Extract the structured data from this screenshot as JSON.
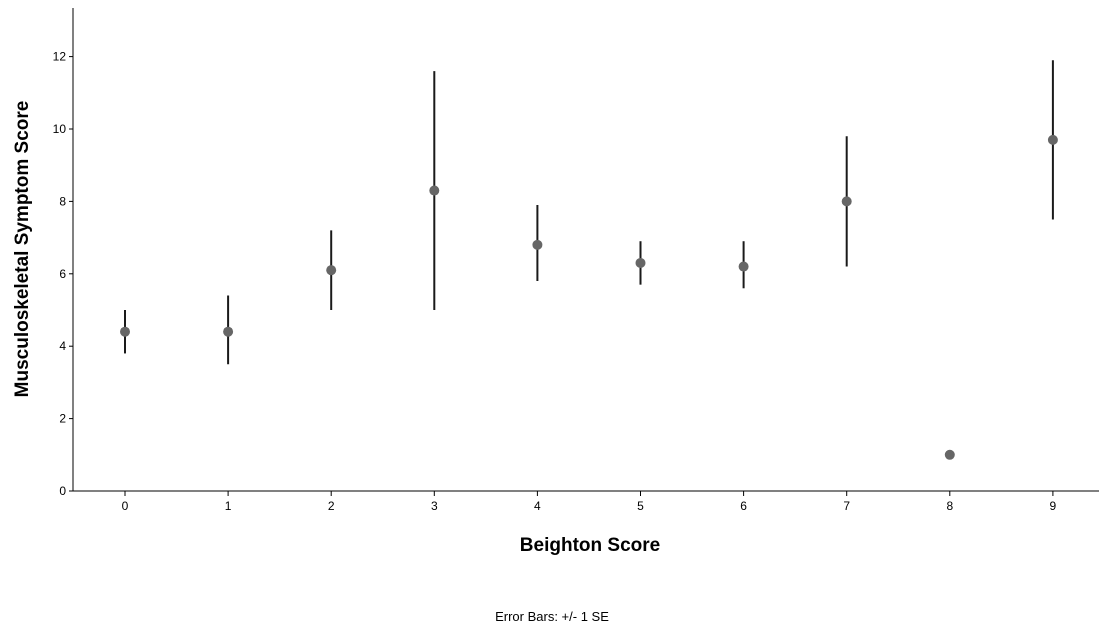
{
  "chart_data": {
    "type": "scatter",
    "title": "",
    "xlabel": "Beighton Score",
    "ylabel": "Musculoskeletal Symptom Score",
    "note": "Error Bars: +/- 1 SE",
    "categories": [
      "0",
      "1",
      "2",
      "3",
      "4",
      "5",
      "6",
      "7",
      "8",
      "9"
    ],
    "series": [
      {
        "values": [
          4.4,
          4.4,
          6.1,
          8.3,
          6.8,
          6.3,
          6.2,
          8.0,
          1.0,
          9.7
        ],
        "error_low": [
          3.8,
          3.5,
          5.0,
          5.0,
          5.8,
          5.7,
          5.6,
          6.2,
          1.0,
          7.5
        ],
        "error_high": [
          5.0,
          5.4,
          7.2,
          11.6,
          7.9,
          6.9,
          6.9,
          9.8,
          1.0,
          11.9
        ]
      }
    ],
    "yticks": [
      0,
      2,
      4,
      6,
      8,
      10,
      12
    ],
    "ylim": [
      0,
      13.3
    ],
    "grid": false,
    "colors": {
      "marker": "#666666",
      "error_bar": "#1a1a1a",
      "axis": "#000000"
    }
  }
}
